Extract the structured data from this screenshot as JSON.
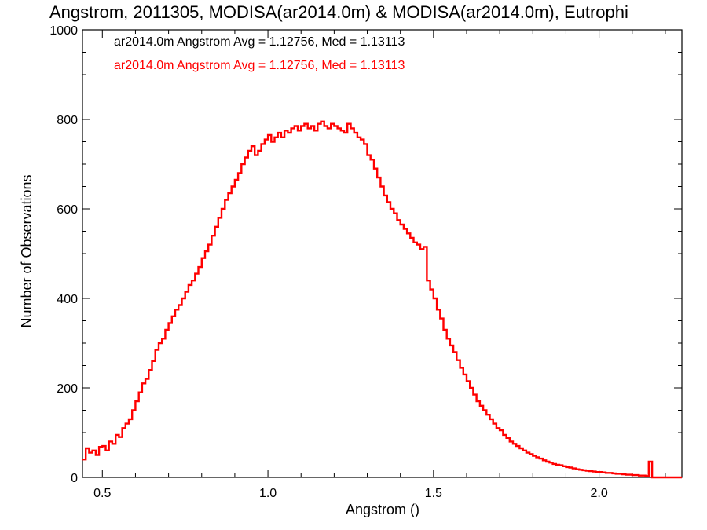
{
  "chart_data": {
    "type": "histogram-step",
    "title": "Angstrom, 2011305, MODISA(ar2014.0m) & MODISA(ar2014.0m), Eutrophi",
    "xlabel": "Angstrom ()",
    "ylabel": "Number of Observations",
    "xlim": [
      0.44,
      2.25
    ],
    "ylim": [
      0,
      1000
    ],
    "grid": false,
    "x_ticks": [
      0.5,
      1.0,
      1.5,
      2.0
    ],
    "x_tick_labels": [
      "0.5",
      "1.0",
      "1.5",
      "2.0"
    ],
    "y_ticks": [
      0,
      200,
      400,
      600,
      800,
      1000
    ],
    "y_tick_labels": [
      "0",
      "200",
      "400",
      "600",
      "800",
      "1000"
    ],
    "annotations": [
      {
        "text": "ar2014.0m Angstrom Avg = 1.12756, Med = 1.13113",
        "color": "#000000"
      },
      {
        "text": "ar2014.0m Angstrom Avg = 1.12756, Med = 1.13113",
        "color": "#ff0000"
      }
    ],
    "series": [
      {
        "color": "#ff0000",
        "points": [
          [
            0.44,
            40
          ],
          [
            0.45,
            65
          ],
          [
            0.46,
            55
          ],
          [
            0.47,
            60
          ],
          [
            0.48,
            50
          ],
          [
            0.49,
            68
          ],
          [
            0.5,
            70
          ],
          [
            0.51,
            60
          ],
          [
            0.52,
            80
          ],
          [
            0.53,
            75
          ],
          [
            0.54,
            95
          ],
          [
            0.55,
            90
          ],
          [
            0.56,
            110
          ],
          [
            0.57,
            120
          ],
          [
            0.58,
            130
          ],
          [
            0.59,
            150
          ],
          [
            0.6,
            170
          ],
          [
            0.61,
            190
          ],
          [
            0.62,
            210
          ],
          [
            0.63,
            220
          ],
          [
            0.64,
            240
          ],
          [
            0.65,
            260
          ],
          [
            0.66,
            285
          ],
          [
            0.67,
            300
          ],
          [
            0.68,
            310
          ],
          [
            0.69,
            330
          ],
          [
            0.7,
            345
          ],
          [
            0.71,
            360
          ],
          [
            0.72,
            375
          ],
          [
            0.73,
            385
          ],
          [
            0.74,
            400
          ],
          [
            0.75,
            415
          ],
          [
            0.76,
            430
          ],
          [
            0.77,
            440
          ],
          [
            0.78,
            455
          ],
          [
            0.79,
            470
          ],
          [
            0.8,
            490
          ],
          [
            0.81,
            505
          ],
          [
            0.82,
            520
          ],
          [
            0.83,
            540
          ],
          [
            0.84,
            560
          ],
          [
            0.85,
            580
          ],
          [
            0.86,
            600
          ],
          [
            0.87,
            620
          ],
          [
            0.88,
            635
          ],
          [
            0.89,
            650
          ],
          [
            0.9,
            665
          ],
          [
            0.91,
            680
          ],
          [
            0.92,
            700
          ],
          [
            0.93,
            715
          ],
          [
            0.94,
            730
          ],
          [
            0.95,
            740
          ],
          [
            0.96,
            720
          ],
          [
            0.97,
            730
          ],
          [
            0.98,
            745
          ],
          [
            0.99,
            755
          ],
          [
            1.0,
            765
          ],
          [
            1.01,
            750
          ],
          [
            1.02,
            760
          ],
          [
            1.03,
            770
          ],
          [
            1.04,
            760
          ],
          [
            1.05,
            775
          ],
          [
            1.06,
            770
          ],
          [
            1.07,
            780
          ],
          [
            1.08,
            785
          ],
          [
            1.09,
            775
          ],
          [
            1.1,
            785
          ],
          [
            1.11,
            790
          ],
          [
            1.12,
            780
          ],
          [
            1.13,
            785
          ],
          [
            1.14,
            775
          ],
          [
            1.15,
            790
          ],
          [
            1.16,
            795
          ],
          [
            1.17,
            785
          ],
          [
            1.18,
            780
          ],
          [
            1.19,
            790
          ],
          [
            1.2,
            785
          ],
          [
            1.21,
            780
          ],
          [
            1.22,
            775
          ],
          [
            1.23,
            770
          ],
          [
            1.24,
            790
          ],
          [
            1.25,
            780
          ],
          [
            1.26,
            770
          ],
          [
            1.27,
            760
          ],
          [
            1.28,
            755
          ],
          [
            1.29,
            745
          ],
          [
            1.3,
            720
          ],
          [
            1.31,
            710
          ],
          [
            1.32,
            690
          ],
          [
            1.33,
            670
          ],
          [
            1.34,
            650
          ],
          [
            1.35,
            630
          ],
          [
            1.36,
            615
          ],
          [
            1.37,
            600
          ],
          [
            1.38,
            590
          ],
          [
            1.39,
            575
          ],
          [
            1.4,
            565
          ],
          [
            1.41,
            555
          ],
          [
            1.42,
            545
          ],
          [
            1.43,
            535
          ],
          [
            1.44,
            525
          ],
          [
            1.45,
            520
          ],
          [
            1.46,
            510
          ],
          [
            1.47,
            515
          ],
          [
            1.48,
            440
          ],
          [
            1.49,
            420
          ],
          [
            1.5,
            400
          ],
          [
            1.51,
            375
          ],
          [
            1.52,
            355
          ],
          [
            1.53,
            330
          ],
          [
            1.54,
            310
          ],
          [
            1.55,
            295
          ],
          [
            1.56,
            280
          ],
          [
            1.57,
            262
          ],
          [
            1.58,
            245
          ],
          [
            1.59,
            230
          ],
          [
            1.6,
            215
          ],
          [
            1.61,
            200
          ],
          [
            1.62,
            185
          ],
          [
            1.63,
            170
          ],
          [
            1.64,
            160
          ],
          [
            1.65,
            150
          ],
          [
            1.66,
            140
          ],
          [
            1.67,
            130
          ],
          [
            1.68,
            120
          ],
          [
            1.69,
            110
          ],
          [
            1.7,
            105
          ],
          [
            1.71,
            95
          ],
          [
            1.72,
            88
          ],
          [
            1.73,
            80
          ],
          [
            1.74,
            75
          ],
          [
            1.75,
            70
          ],
          [
            1.76,
            65
          ],
          [
            1.77,
            60
          ],
          [
            1.78,
            55
          ],
          [
            1.79,
            52
          ],
          [
            1.8,
            48
          ],
          [
            1.81,
            45
          ],
          [
            1.82,
            42
          ],
          [
            1.83,
            38
          ],
          [
            1.84,
            35
          ],
          [
            1.85,
            33
          ],
          [
            1.86,
            30
          ],
          [
            1.87,
            28
          ],
          [
            1.88,
            27
          ],
          [
            1.89,
            25
          ],
          [
            1.9,
            23
          ],
          [
            1.91,
            22
          ],
          [
            1.92,
            20
          ],
          [
            1.93,
            18
          ],
          [
            1.94,
            17
          ],
          [
            1.95,
            16
          ],
          [
            1.96,
            15
          ],
          [
            1.97,
            14
          ],
          [
            1.98,
            13
          ],
          [
            1.99,
            12
          ],
          [
            2.0,
            12
          ],
          [
            2.01,
            11
          ],
          [
            2.02,
            10
          ],
          [
            2.03,
            10
          ],
          [
            2.04,
            9
          ],
          [
            2.05,
            8
          ],
          [
            2.06,
            8
          ],
          [
            2.07,
            7
          ],
          [
            2.08,
            6
          ],
          [
            2.09,
            6
          ],
          [
            2.1,
            5
          ],
          [
            2.11,
            5
          ],
          [
            2.12,
            4
          ],
          [
            2.13,
            4
          ],
          [
            2.14,
            3
          ],
          [
            2.15,
            35
          ],
          [
            2.16,
            0
          ],
          [
            2.25,
            0
          ]
        ]
      }
    ]
  }
}
